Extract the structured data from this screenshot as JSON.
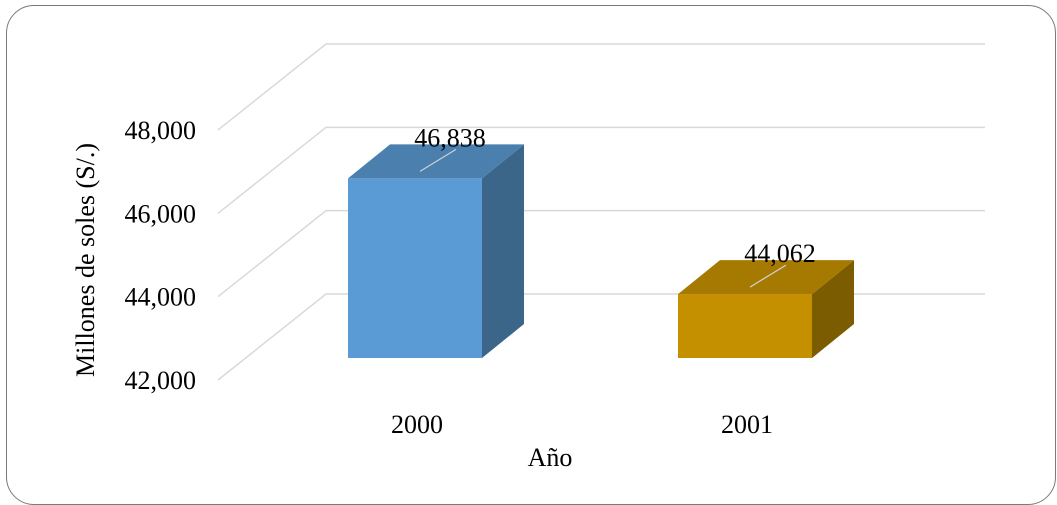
{
  "chart_data": {
    "type": "bar",
    "categories": [
      "2000",
      "2001"
    ],
    "values": [
      46838,
      44062
    ],
    "value_labels": [
      "46,838",
      "44,062"
    ],
    "xlabel": "Año",
    "ylabel": "Millones de soles (S/.)",
    "ylim": [
      42000,
      48000
    ],
    "yticks": [
      42000,
      44000,
      46000,
      48000
    ],
    "ytick_labels": [
      "42,000",
      "44,000",
      "46,000",
      "48,000"
    ],
    "grid": true,
    "style": "3d-column",
    "colors": {
      "bars_front": [
        "#5b9bd5",
        "#c49000"
      ],
      "bars_top": [
        "#4a7fae",
        "#a67a00"
      ],
      "bars_side": [
        "#3b6589",
        "#7c5c00"
      ],
      "grid": "#d9d9d9"
    }
  }
}
